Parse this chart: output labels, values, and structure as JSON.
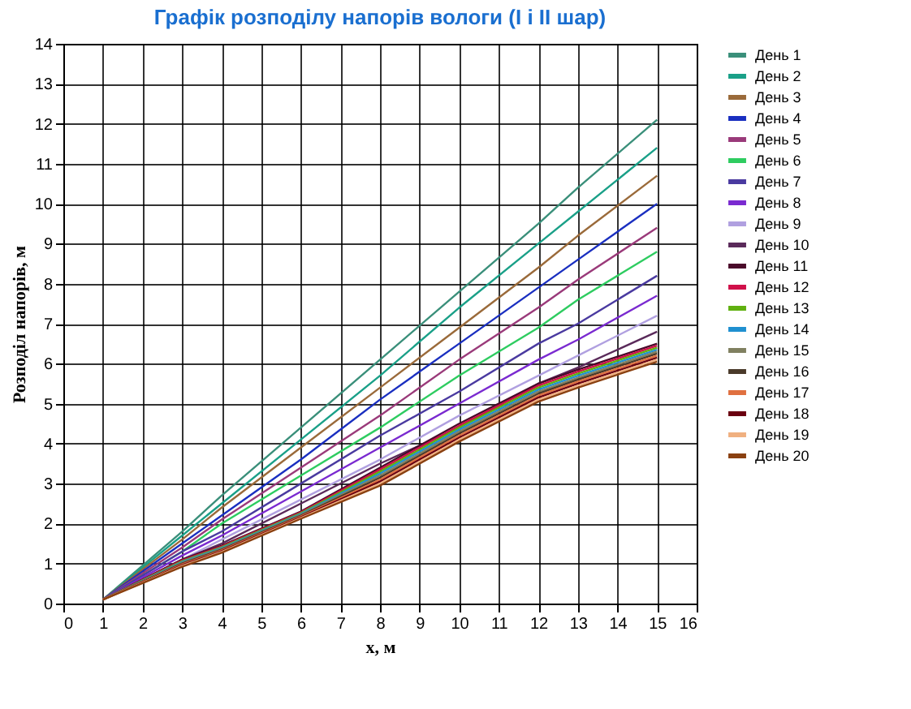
{
  "chart_data": {
    "type": "line",
    "title": "Графік розподілу напорів вологи (I і II шар)",
    "xlabel": "x, м",
    "ylabel": "Розподіл напорів, м",
    "x": [
      1,
      3,
      4,
      6,
      8,
      10,
      12,
      13,
      15
    ],
    "xlim": [
      0,
      16
    ],
    "xticks": [
      0,
      1,
      2,
      3,
      4,
      5,
      6,
      7,
      8,
      9,
      10,
      11,
      12,
      13,
      14,
      15,
      16
    ],
    "ylim": [
      0,
      14
    ],
    "yticks": [
      0,
      1,
      2,
      3,
      4,
      5,
      6,
      7,
      8,
      9,
      10,
      11,
      12,
      13,
      14
    ],
    "grid": true,
    "legend": "right",
    "marker": "none",
    "line_style": "solid",
    "series": [
      {
        "name": "День 1",
        "color": "#3a8f7a",
        "values": [
          0.1,
          1.8,
          2.7,
          4.4,
          6.1,
          7.8,
          9.5,
          10.4,
          12.1
        ]
      },
      {
        "name": "День 2",
        "color": "#1aa088",
        "values": [
          0.1,
          1.7,
          2.5,
          4.1,
          5.7,
          7.4,
          9.0,
          9.8,
          11.4
        ]
      },
      {
        "name": "День 3",
        "color": "#9a6a3a",
        "values": [
          0.1,
          1.6,
          2.4,
          3.9,
          5.4,
          6.9,
          8.4,
          9.2,
          10.7
        ]
      },
      {
        "name": "День 4",
        "color": "#1a2fc0",
        "values": [
          0.1,
          1.5,
          2.2,
          3.6,
          5.1,
          6.5,
          7.9,
          8.6,
          10.0
        ]
      },
      {
        "name": "День 5",
        "color": "#9a3a7a",
        "values": [
          0.1,
          1.4,
          2.1,
          3.4,
          4.7,
          6.1,
          7.4,
          8.1,
          9.4
        ]
      },
      {
        "name": "День 6",
        "color": "#2ecc60",
        "values": [
          0.1,
          1.3,
          2.0,
          3.2,
          4.4,
          5.7,
          6.9,
          7.6,
          8.8
        ]
      },
      {
        "name": "День 7",
        "color": "#4a3aa0",
        "values": [
          0.1,
          1.3,
          1.8,
          3.0,
          4.2,
          5.3,
          6.5,
          7.0,
          8.2
        ]
      },
      {
        "name": "День 8",
        "color": "#7a2ad0",
        "values": [
          0.1,
          1.2,
          1.7,
          2.8,
          3.9,
          5.0,
          6.1,
          6.6,
          7.7
        ]
      },
      {
        "name": "День 9",
        "color": "#b0a0e0",
        "values": [
          0.1,
          1.1,
          1.6,
          2.6,
          3.6,
          4.7,
          5.7,
          6.2,
          7.2
        ]
      },
      {
        "name": "День 10",
        "color": "#5a2a5a",
        "values": [
          0.1,
          1.1,
          1.5,
          2.5,
          3.5,
          4.4,
          5.5,
          5.9,
          6.8
        ]
      },
      {
        "name": "День 11",
        "color": "#4a0a2a",
        "values": [
          0.1,
          1.1,
          1.45,
          2.3,
          3.4,
          4.5,
          5.5,
          5.85,
          6.5
        ]
      },
      {
        "name": "День 12",
        "color": "#d0104a",
        "values": [
          0.1,
          1.08,
          1.43,
          2.28,
          3.35,
          4.45,
          5.45,
          5.8,
          6.45
        ]
      },
      {
        "name": "День 13",
        "color": "#60b010",
        "values": [
          0.1,
          1.06,
          1.41,
          2.26,
          3.3,
          4.4,
          5.4,
          5.75,
          6.4
        ]
      },
      {
        "name": "День 14",
        "color": "#2090d0",
        "values": [
          0.1,
          1.04,
          1.39,
          2.24,
          3.25,
          4.35,
          5.35,
          5.7,
          6.35
        ]
      },
      {
        "name": "День 15",
        "color": "#808060",
        "values": [
          0.1,
          1.02,
          1.37,
          2.22,
          3.2,
          4.3,
          5.3,
          5.65,
          6.3
        ]
      },
      {
        "name": "День 16",
        "color": "#4a3a2a",
        "values": [
          0.1,
          1.0,
          1.35,
          2.2,
          3.15,
          4.25,
          5.25,
          5.6,
          6.25
        ]
      },
      {
        "name": "День 17",
        "color": "#e07040",
        "values": [
          0.1,
          0.98,
          1.33,
          2.18,
          3.1,
          4.2,
          5.2,
          5.55,
          6.2
        ]
      },
      {
        "name": "День 18",
        "color": "#6a0010",
        "values": [
          0.1,
          0.96,
          1.31,
          2.16,
          3.05,
          4.15,
          5.15,
          5.5,
          6.15
        ]
      },
      {
        "name": "День 19",
        "color": "#f0b080",
        "values": [
          0.1,
          0.94,
          1.29,
          2.14,
          3.0,
          4.1,
          5.1,
          5.45,
          6.1
        ]
      },
      {
        "name": "День 20",
        "color": "#8a4010",
        "values": [
          0.1,
          0.92,
          1.27,
          2.12,
          2.95,
          4.05,
          5.05,
          5.4,
          6.05
        ]
      }
    ]
  }
}
